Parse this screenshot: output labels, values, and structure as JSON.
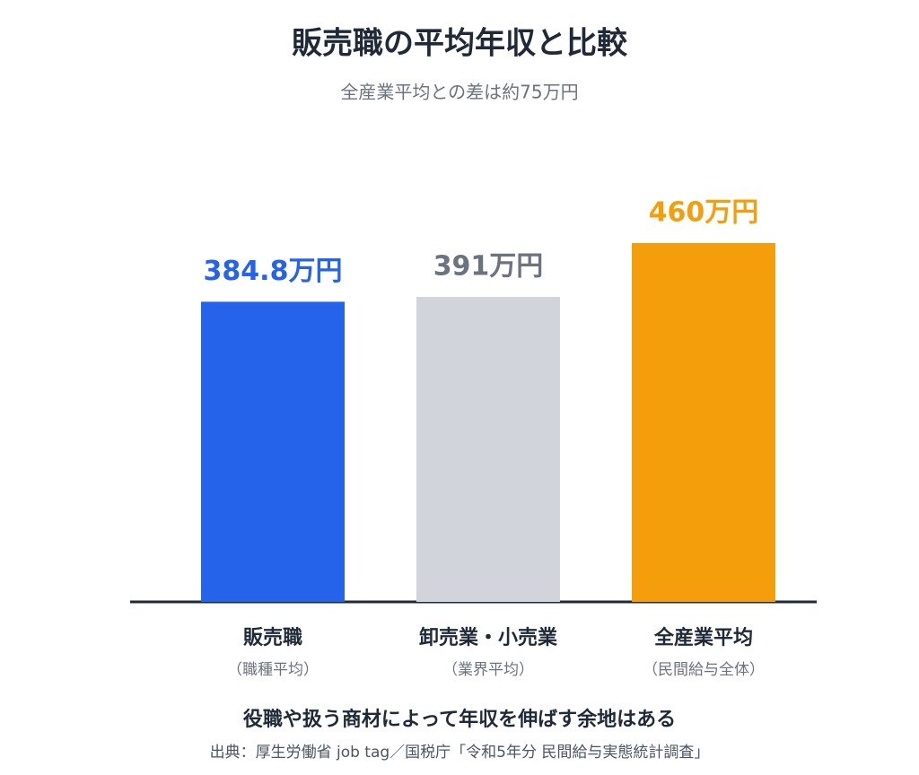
{
  "chart_data": {
    "type": "bar",
    "title": "販売職の平均年収と比較",
    "subtitle": "全産業平均との差は約75万円",
    "categories": [
      "販売職",
      "卸売業・小売業",
      "全産業平均"
    ],
    "category_sublabels": [
      "（職種平均）",
      "（業界平均）",
      "（民間給与全体）"
    ],
    "values": [
      384.8,
      391,
      460
    ],
    "value_labels": [
      "384.8万円",
      "391万円",
      "460万円"
    ],
    "colors": [
      "#2563eb",
      "#d1d5db",
      "#f59e0b"
    ],
    "value_label_colors": [
      "#2563eb",
      "#6b7280",
      "#f59e0b"
    ],
    "ylim": [
      0,
      460
    ],
    "note": "役職や扱う商材によって年収を伸ばす余地はある",
    "source": "出典：厚生労働省 job tag／国税庁「令和5年分 民間給与実態統計調査」"
  }
}
